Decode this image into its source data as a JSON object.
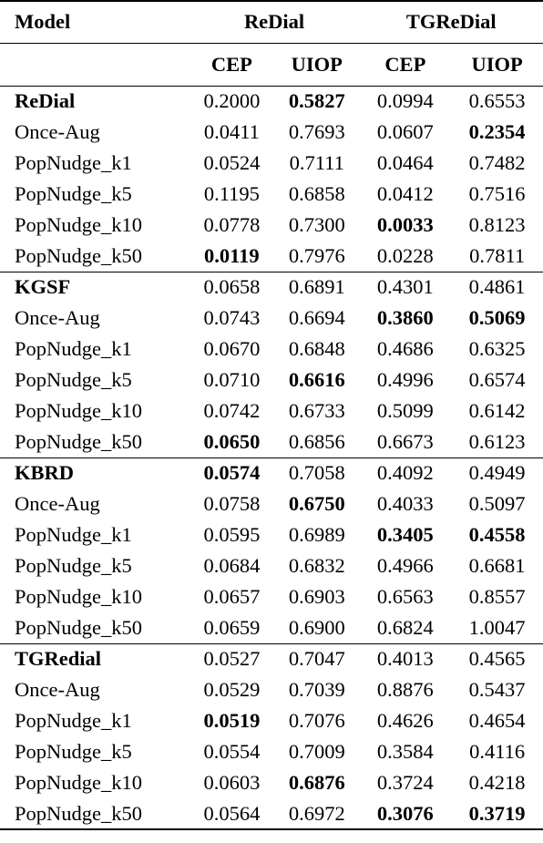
{
  "header": {
    "model": "Model",
    "group1": "ReDial",
    "group2": "TGReDial",
    "cep": "CEP",
    "uiop": "UIOP"
  },
  "groups": [
    {
      "rows": [
        {
          "model": "ReDial",
          "v": [
            "0.2000",
            "0.5827",
            "0.0994",
            "0.6553"
          ]
        },
        {
          "model": "Once-Aug",
          "v": [
            "0.0411",
            "0.7693",
            "0.0607",
            "0.2354"
          ]
        },
        {
          "model": "PopNudge_k1",
          "v": [
            "0.0524",
            "0.7111",
            "0.0464",
            "0.7482"
          ]
        },
        {
          "model": "PopNudge_k5",
          "v": [
            "0.1195",
            "0.6858",
            "0.0412",
            "0.7516"
          ]
        },
        {
          "model": "PopNudge_k10",
          "v": [
            "0.0778",
            "0.7300",
            "0.0033",
            "0.8123"
          ]
        },
        {
          "model": "PopNudge_k50",
          "v": [
            "0.0119",
            "0.7976",
            "0.0228",
            "0.7811"
          ]
        }
      ]
    },
    {
      "rows": [
        {
          "model": "KGSF",
          "v": [
            "0.0658",
            "0.6891",
            "0.4301",
            "0.4861"
          ]
        },
        {
          "model": "Once-Aug",
          "v": [
            "0.0743",
            "0.6694",
            "0.3860",
            "0.5069"
          ]
        },
        {
          "model": "PopNudge_k1",
          "v": [
            "0.0670",
            "0.6848",
            "0.4686",
            "0.6325"
          ]
        },
        {
          "model": "PopNudge_k5",
          "v": [
            "0.0710",
            "0.6616",
            "0.4996",
            "0.6574"
          ]
        },
        {
          "model": "PopNudge_k10",
          "v": [
            "0.0742",
            "0.6733",
            "0.5099",
            "0.6142"
          ]
        },
        {
          "model": "PopNudge_k50",
          "v": [
            "0.0650",
            "0.6856",
            "0.6673",
            "0.6123"
          ]
        }
      ]
    },
    {
      "rows": [
        {
          "model": "KBRD",
          "v": [
            "0.0574",
            "0.7058",
            "0.4092",
            "0.4949"
          ]
        },
        {
          "model": "Once-Aug",
          "v": [
            "0.0758",
            "0.6750",
            "0.4033",
            "0.5097"
          ]
        },
        {
          "model": "PopNudge_k1",
          "v": [
            "0.0595",
            "0.6989",
            "0.3405",
            "0.4558"
          ]
        },
        {
          "model": "PopNudge_k5",
          "v": [
            "0.0684",
            "0.6832",
            "0.4966",
            "0.6681"
          ]
        },
        {
          "model": "PopNudge_k10",
          "v": [
            "0.0657",
            "0.6903",
            "0.6563",
            "0.8557"
          ]
        },
        {
          "model": "PopNudge_k50",
          "v": [
            "0.0659",
            "0.6900",
            "0.6824",
            "1.0047"
          ]
        }
      ]
    },
    {
      "rows": [
        {
          "model": "TGRedial",
          "v": [
            "0.0527",
            "0.7047",
            "0.4013",
            "0.4565"
          ]
        },
        {
          "model": "Once-Aug",
          "v": [
            "0.0529",
            "0.7039",
            "0.8876",
            "0.5437"
          ]
        },
        {
          "model": "PopNudge_k1",
          "v": [
            "0.0519",
            "0.7076",
            "0.4626",
            "0.4654"
          ]
        },
        {
          "model": "PopNudge_k5",
          "v": [
            "0.0554",
            "0.7009",
            "0.3584",
            "0.4116"
          ]
        },
        {
          "model": "PopNudge_k10",
          "v": [
            "0.0603",
            "0.6876",
            "0.3724",
            "0.4218"
          ]
        },
        {
          "model": "PopNudge_k50",
          "v": [
            "0.0564",
            "0.6972",
            "0.3076",
            "0.3719"
          ]
        }
      ]
    }
  ]
}
